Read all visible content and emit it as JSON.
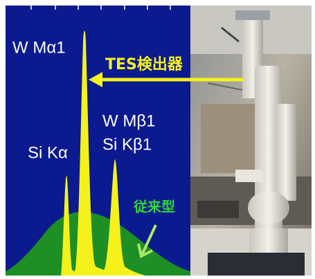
{
  "spectrum": {
    "peak_labels": [
      "W Mα1",
      "Si Kα",
      "W Mβ1",
      "Si Kβ1"
    ],
    "conventional_label": "従来型"
  },
  "detector_label": "TES検出器"
}
